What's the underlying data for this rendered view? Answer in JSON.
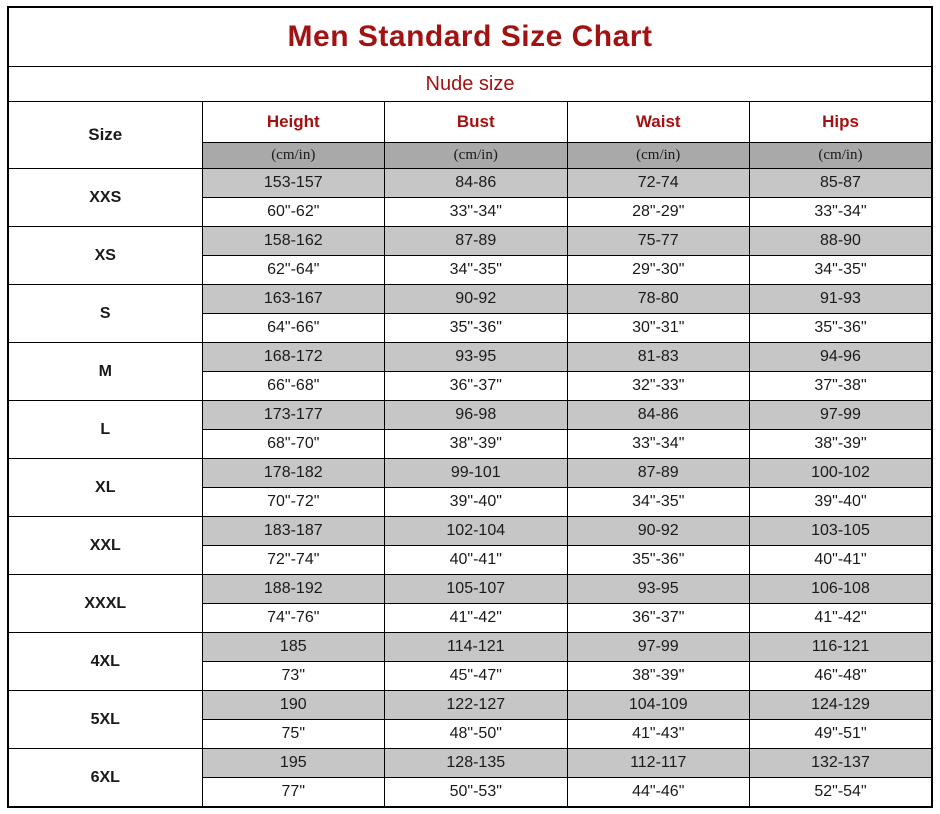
{
  "colors": {
    "accent_red": "#a31212",
    "unit_band_gray": "#a9a9a9",
    "cm_row_gray": "#c6c6c6",
    "border_black": "#000000"
  },
  "chart_data": {
    "type": "table",
    "title": "Men Standard Size Chart",
    "subtitle": "Nude size",
    "columns": [
      "Size",
      "Height",
      "Bust",
      "Waist",
      "Hips"
    ],
    "unit_label": "(cm/in)",
    "rows": [
      {
        "size": "XXS",
        "height_cm": "153-157",
        "height_in": "60\"-62\"",
        "bust_cm": "84-86",
        "bust_in": "33\"-34\"",
        "waist_cm": "72-74",
        "waist_in": "28\"-29\"",
        "hips_cm": "85-87",
        "hips_in": "33\"-34\""
      },
      {
        "size": "XS",
        "height_cm": "158-162",
        "height_in": "62\"-64\"",
        "bust_cm": "87-89",
        "bust_in": "34\"-35\"",
        "waist_cm": "75-77",
        "waist_in": "29\"-30\"",
        "hips_cm": "88-90",
        "hips_in": "34\"-35\""
      },
      {
        "size": "S",
        "height_cm": "163-167",
        "height_in": "64\"-66\"",
        "bust_cm": "90-92",
        "bust_in": "35\"-36\"",
        "waist_cm": "78-80",
        "waist_in": "30\"-31\"",
        "hips_cm": "91-93",
        "hips_in": "35\"-36\""
      },
      {
        "size": "M",
        "height_cm": "168-172",
        "height_in": "66\"-68\"",
        "bust_cm": "93-95",
        "bust_in": "36\"-37\"",
        "waist_cm": "81-83",
        "waist_in": "32\"-33\"",
        "hips_cm": "94-96",
        "hips_in": "37\"-38\""
      },
      {
        "size": "L",
        "height_cm": "173-177",
        "height_in": "68\"-70\"",
        "bust_cm": "96-98",
        "bust_in": "38\"-39\"",
        "waist_cm": "84-86",
        "waist_in": "33\"-34\"",
        "hips_cm": "97-99",
        "hips_in": "38\"-39\""
      },
      {
        "size": "XL",
        "height_cm": "178-182",
        "height_in": "70\"-72\"",
        "bust_cm": "99-101",
        "bust_in": "39\"-40\"",
        "waist_cm": "87-89",
        "waist_in": "34\"-35\"",
        "hips_cm": "100-102",
        "hips_in": "39\"-40\""
      },
      {
        "size": "XXL",
        "height_cm": "183-187",
        "height_in": "72\"-74\"",
        "bust_cm": "102-104",
        "bust_in": "40\"-41\"",
        "waist_cm": "90-92",
        "waist_in": "35\"-36\"",
        "hips_cm": "103-105",
        "hips_in": "40\"-41\""
      },
      {
        "size": "XXXL",
        "height_cm": "188-192",
        "height_in": "74\"-76\"",
        "bust_cm": "105-107",
        "bust_in": "41\"-42\"",
        "waist_cm": "93-95",
        "waist_in": "36\"-37\"",
        "hips_cm": "106-108",
        "hips_in": "41\"-42\""
      },
      {
        "size": "4XL",
        "height_cm": "185",
        "height_in": "73\"",
        "bust_cm": "114-121",
        "bust_in": "45\"-47\"",
        "waist_cm": "97-99",
        "waist_in": "38\"-39\"",
        "hips_cm": "116-121",
        "hips_in": "46\"-48\""
      },
      {
        "size": "5XL",
        "height_cm": "190",
        "height_in": "75\"",
        "bust_cm": "122-127",
        "bust_in": "48\"-50\"",
        "waist_cm": "104-109",
        "waist_in": "41\"-43\"",
        "hips_cm": "124-129",
        "hips_in": "49\"-51\""
      },
      {
        "size": "6XL",
        "height_cm": "195",
        "height_in": "77\"",
        "bust_cm": "128-135",
        "bust_in": "50\"-53\"",
        "waist_cm": "112-117",
        "waist_in": "44\"-46\"",
        "hips_cm": "132-137",
        "hips_in": "52\"-54\""
      }
    ]
  }
}
